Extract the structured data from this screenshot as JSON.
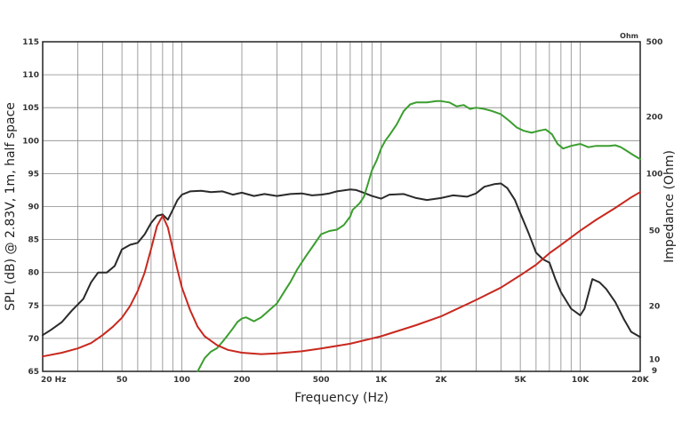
{
  "chart_data": {
    "type": "line",
    "title": "",
    "xlabel": "Frequency (Hz)",
    "ylabel": "SPL (dB) @ 2.83V, 1m, half space",
    "y2label": "Impedance (Ohm)",
    "y2unit": "Ohm",
    "x_scale": "log",
    "xlim": [
      20,
      20000
    ],
    "ylim": [
      65,
      115
    ],
    "y2lim": [
      9,
      500
    ],
    "y2_scale": "log",
    "grid": true,
    "x_ticks": [
      {
        "value": 20,
        "label": "20 Hz"
      },
      {
        "value": 50,
        "label": "50"
      },
      {
        "value": 100,
        "label": "100"
      },
      {
        "value": 200,
        "label": "200"
      },
      {
        "value": 500,
        "label": "500"
      },
      {
        "value": 1000,
        "label": "1K"
      },
      {
        "value": 2000,
        "label": "2K"
      },
      {
        "value": 5000,
        "label": "5K"
      },
      {
        "value": 10000,
        "label": "10K"
      },
      {
        "value": 20000,
        "label": "20K"
      }
    ],
    "y_ticks": [
      {
        "value": 65,
        "label": "65"
      },
      {
        "value": 70,
        "label": "70"
      },
      {
        "value": 75,
        "label": "75"
      },
      {
        "value": 80,
        "label": "80"
      },
      {
        "value": 85,
        "label": "85"
      },
      {
        "value": 90,
        "label": "90"
      },
      {
        "value": 95,
        "label": "95"
      },
      {
        "value": 100,
        "label": "100"
      },
      {
        "value": 105,
        "label": "105"
      },
      {
        "value": 110,
        "label": "110"
      },
      {
        "value": 115,
        "label": "115"
      }
    ],
    "y2_ticks": [
      {
        "value": 9,
        "label": "9"
      },
      {
        "value": 10,
        "label": "10"
      },
      {
        "value": 20,
        "label": "20"
      },
      {
        "value": 50,
        "label": "50"
      },
      {
        "value": 100,
        "label": "100"
      },
      {
        "value": 200,
        "label": "200"
      },
      {
        "value": 500,
        "label": "500"
      }
    ],
    "series": [
      {
        "color": "#2a2a2a",
        "axis": "left",
        "points": [
          [
            20,
            70.5
          ],
          [
            22,
            71.3
          ],
          [
            25,
            72.5
          ],
          [
            28,
            74.2
          ],
          [
            32,
            76
          ],
          [
            35,
            78.5
          ],
          [
            38,
            80
          ],
          [
            42,
            80
          ],
          [
            46,
            81
          ],
          [
            50,
            83.5
          ],
          [
            55,
            84.2
          ],
          [
            60,
            84.5
          ],
          [
            65,
            85.8
          ],
          [
            70,
            87.5
          ],
          [
            75,
            88.6
          ],
          [
            80,
            88.8
          ],
          [
            85,
            88
          ],
          [
            90,
            89.5
          ],
          [
            95,
            91
          ],
          [
            100,
            91.8
          ],
          [
            110,
            92.3
          ],
          [
            125,
            92.4
          ],
          [
            140,
            92.2
          ],
          [
            160,
            92.3
          ],
          [
            180,
            91.8
          ],
          [
            200,
            92.1
          ],
          [
            230,
            91.6
          ],
          [
            260,
            91.9
          ],
          [
            300,
            91.6
          ],
          [
            350,
            91.9
          ],
          [
            400,
            92
          ],
          [
            450,
            91.7
          ],
          [
            500,
            91.8
          ],
          [
            550,
            92
          ],
          [
            600,
            92.3
          ],
          [
            700,
            92.6
          ],
          [
            750,
            92.5
          ],
          [
            800,
            92.2
          ],
          [
            900,
            91.6
          ],
          [
            1000,
            91.2
          ],
          [
            1100,
            91.8
          ],
          [
            1300,
            91.9
          ],
          [
            1500,
            91.3
          ],
          [
            1700,
            91
          ],
          [
            2000,
            91.3
          ],
          [
            2300,
            91.7
          ],
          [
            2700,
            91.5
          ],
          [
            3000,
            92
          ],
          [
            3300,
            93
          ],
          [
            3700,
            93.4
          ],
          [
            4000,
            93.5
          ],
          [
            4300,
            92.8
          ],
          [
            4700,
            91
          ],
          [
            5000,
            89
          ],
          [
            5500,
            86
          ],
          [
            6000,
            83
          ],
          [
            6500,
            82
          ],
          [
            7000,
            81.5
          ],
          [
            7500,
            79
          ],
          [
            8000,
            77
          ],
          [
            9000,
            74.5
          ],
          [
            10000,
            73.5
          ],
          [
            10500,
            74.5
          ],
          [
            11500,
            79
          ],
          [
            12500,
            78.5
          ],
          [
            13500,
            77.5
          ],
          [
            15000,
            75.5
          ],
          [
            16500,
            73
          ],
          [
            18000,
            71
          ],
          [
            20000,
            70.2
          ]
        ]
      },
      {
        "color": "#3a9e2e",
        "axis": "left",
        "points": [
          [
            120,
            65
          ],
          [
            130,
            67
          ],
          [
            140,
            68
          ],
          [
            150,
            68.5
          ],
          [
            160,
            69.5
          ],
          [
            170,
            70.5
          ],
          [
            180,
            71.5
          ],
          [
            190,
            72.5
          ],
          [
            200,
            73
          ],
          [
            210,
            73.2
          ],
          [
            230,
            72.6
          ],
          [
            250,
            73.2
          ],
          [
            280,
            74.5
          ],
          [
            300,
            75.3
          ],
          [
            330,
            77.3
          ],
          [
            350,
            78.5
          ],
          [
            380,
            80.5
          ],
          [
            420,
            82.5
          ],
          [
            460,
            84.2
          ],
          [
            500,
            85.8
          ],
          [
            550,
            86.3
          ],
          [
            600,
            86.5
          ],
          [
            650,
            87.2
          ],
          [
            700,
            88.5
          ],
          [
            720,
            89.5
          ],
          [
            780,
            90.5
          ],
          [
            820,
            91.5
          ],
          [
            860,
            93.5
          ],
          [
            900,
            95.5
          ],
          [
            950,
            97
          ],
          [
            1000,
            98.8
          ],
          [
            1050,
            100
          ],
          [
            1100,
            100.8
          ],
          [
            1200,
            102.5
          ],
          [
            1300,
            104.5
          ],
          [
            1400,
            105.5
          ],
          [
            1500,
            105.8
          ],
          [
            1700,
            105.8
          ],
          [
            1900,
            106
          ],
          [
            2000,
            106
          ],
          [
            2200,
            105.8
          ],
          [
            2400,
            105.2
          ],
          [
            2600,
            105.4
          ],
          [
            2800,
            104.8
          ],
          [
            3000,
            105
          ],
          [
            3300,
            104.8
          ],
          [
            3600,
            104.5
          ],
          [
            4000,
            104
          ],
          [
            4400,
            103
          ],
          [
            4800,
            102
          ],
          [
            5200,
            101.5
          ],
          [
            5700,
            101.2
          ],
          [
            6200,
            101.5
          ],
          [
            6700,
            101.7
          ],
          [
            7200,
            101
          ],
          [
            7700,
            99.5
          ],
          [
            8200,
            98.8
          ],
          [
            9000,
            99.2
          ],
          [
            10000,
            99.5
          ],
          [
            11000,
            99
          ],
          [
            12000,
            99.2
          ],
          [
            13000,
            99.2
          ],
          [
            14000,
            99.2
          ],
          [
            15000,
            99.3
          ],
          [
            16000,
            99
          ],
          [
            17000,
            98.5
          ],
          [
            18500,
            97.8
          ],
          [
            20000,
            97.2
          ]
        ]
      },
      {
        "color": "#c8281e",
        "axis": "right",
        "points": [
          [
            20,
            10.8
          ],
          [
            25,
            11.3
          ],
          [
            30,
            11.9
          ],
          [
            35,
            12.7
          ],
          [
            40,
            14
          ],
          [
            45,
            15.5
          ],
          [
            50,
            17.3
          ],
          [
            55,
            20
          ],
          [
            60,
            24
          ],
          [
            65,
            30
          ],
          [
            70,
            40
          ],
          [
            75,
            53
          ],
          [
            80,
            60
          ],
          [
            85,
            52
          ],
          [
            90,
            40
          ],
          [
            95,
            31
          ],
          [
            100,
            25
          ],
          [
            110,
            19
          ],
          [
            120,
            15.5
          ],
          [
            130,
            13.8
          ],
          [
            150,
            12.4
          ],
          [
            170,
            11.7
          ],
          [
            200,
            11.3
          ],
          [
            250,
            11.1
          ],
          [
            300,
            11.2
          ],
          [
            400,
            11.5
          ],
          [
            500,
            11.9
          ],
          [
            700,
            12.6
          ],
          [
            1000,
            13.8
          ],
          [
            1500,
            15.8
          ],
          [
            2000,
            17.6
          ],
          [
            3000,
            21.5
          ],
          [
            4000,
            25
          ],
          [
            5000,
            29
          ],
          [
            6000,
            33
          ],
          [
            7000,
            38
          ],
          [
            8000,
            42
          ],
          [
            10000,
            50
          ],
          [
            12000,
            57
          ],
          [
            15000,
            66
          ],
          [
            18000,
            75
          ],
          [
            20000,
            80
          ]
        ]
      }
    ]
  }
}
